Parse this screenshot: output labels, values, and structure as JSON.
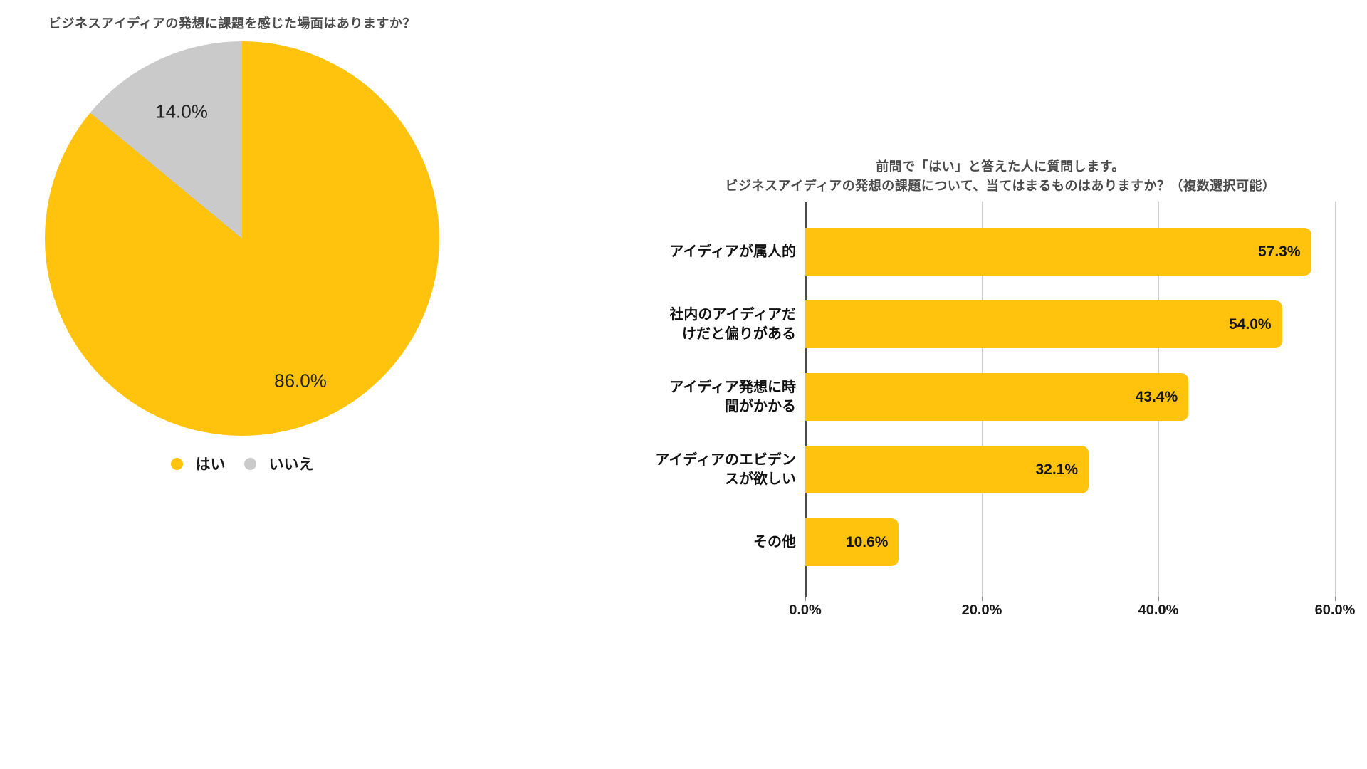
{
  "pie_panel": {
    "title": "ビジネスアイディアの発想に課題を感じた場面はありますか？"
  },
  "bar_panel": {
    "title_line1": "前問で「はい」と答えた人に質問します。",
    "title_line2": "ビジネスアイディアの発想の課題について、当てはまるものはありますか？（複数選択可能）"
  },
  "chart_data": [
    {
      "type": "pie",
      "title": "ビジネスアイディアの発想に課題を感じた場面はありますか？",
      "labels": [
        "はい",
        "いいえ"
      ],
      "values": [
        86.0,
        14.0
      ],
      "value_labels": [
        "86.0%",
        "14.0%"
      ],
      "colors": [
        "#FFC20D",
        "#CACACA"
      ],
      "legend_position": "bottom",
      "start_angle": "top",
      "direction": "clockwise"
    },
    {
      "type": "bar",
      "orientation": "horizontal",
      "title": "前問で「はい」と答えた人に質問します。 ビジネスアイディアの発想の課題について、当てはまるものはありますか？（複数選択可能）",
      "categories": [
        "アイディアが属人的",
        "社内のアイディアだけだと偏りがある",
        "アイディア発想に時間がかかる",
        "アイディアのエビデンスが欲しい",
        "その他"
      ],
      "category_lines": [
        [
          "アイディアが属人的"
        ],
        [
          "社内のアイディアだ",
          "けだと偏りがある"
        ],
        [
          "アイディア発想に時",
          "間がかかる"
        ],
        [
          "アイディアのエビデン",
          "スが欲しい"
        ],
        [
          "その他"
        ]
      ],
      "values": [
        57.3,
        54.0,
        43.4,
        32.1,
        10.6
      ],
      "value_labels": [
        "57.3%",
        "54.0%",
        "43.4%",
        "32.1%",
        "10.6%"
      ],
      "x_ticks": [
        "0.0%",
        "20.0%",
        "40.0%",
        "60.0%"
      ],
      "x_tick_values": [
        0,
        20,
        40,
        60
      ],
      "xlim": [
        0,
        62
      ],
      "bar_color": "#FFC20D",
      "grid": true,
      "grid_color": "#CCCCCC",
      "axis_color": "#4D4D4D"
    }
  ]
}
